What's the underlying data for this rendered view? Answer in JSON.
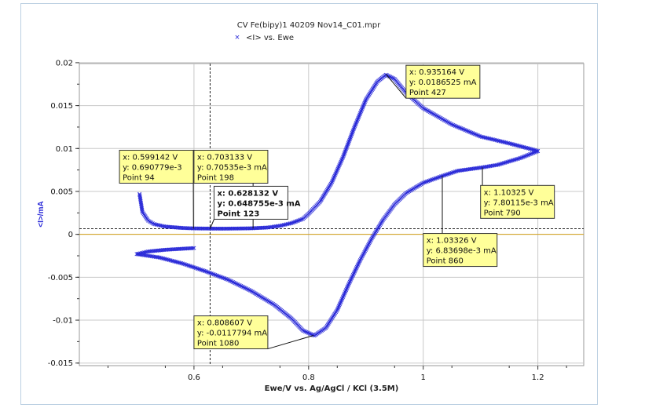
{
  "chart_data": {
    "type": "scatter",
    "title": "CV Fe(bipy)1 40209 Nov14_C01.mpr",
    "legend": {
      "marker": "×",
      "label": "<I> vs. Ewe",
      "position": "top-left"
    },
    "xlabel": "Ewe/V vs. Ag/AgCl / KCl (3.5M)",
    "ylabel": "<I>/mA",
    "xlim": [
      0.4,
      1.28
    ],
    "ylim": [
      -0.0153,
      0.0199
    ],
    "xticks": [
      "0.6",
      "0.8",
      "1",
      "1.2"
    ],
    "yticks": [
      {
        "v": 0.02,
        "label": "0.02"
      },
      {
        "v": 0.015,
        "label": "0.015"
      },
      {
        "v": 0.01,
        "label": "0.01"
      },
      {
        "v": 0.005,
        "label": "0.005"
      },
      {
        "v": 0,
        "label": "0"
      },
      {
        "v": -0.005,
        "label": "-0.005"
      },
      {
        "v": -0.01,
        "label": "-0.01"
      },
      {
        "v": -0.015,
        "label": "-0.015"
      }
    ],
    "grid": true,
    "cursor": {
      "x": 0.628132,
      "y": 0.000648755
    },
    "zero_line": true,
    "series": [
      {
        "name": "<I> vs. Ewe",
        "color": "#2a2ad8",
        "anodic_sweep": [
          [
            0.505,
            0.0047
          ],
          [
            0.51,
            0.0026
          ],
          [
            0.52,
            0.0016
          ],
          [
            0.53,
            0.0012
          ],
          [
            0.55,
            0.0009
          ],
          [
            0.58,
            0.00074
          ],
          [
            0.6,
            0.00069
          ],
          [
            0.65,
            0.00066
          ],
          [
            0.7,
            0.0007
          ],
          [
            0.73,
            0.0008
          ],
          [
            0.75,
            0.001
          ],
          [
            0.77,
            0.0013
          ],
          [
            0.79,
            0.0018
          ],
          [
            0.8,
            0.0024
          ],
          [
            0.82,
            0.0038
          ],
          [
            0.84,
            0.006
          ],
          [
            0.86,
            0.009
          ],
          [
            0.88,
            0.0125
          ],
          [
            0.9,
            0.0157
          ],
          [
            0.92,
            0.0178
          ],
          [
            0.935,
            0.0186
          ],
          [
            0.95,
            0.0181
          ],
          [
            0.97,
            0.0165
          ],
          [
            1.0,
            0.0147
          ],
          [
            1.05,
            0.0128
          ],
          [
            1.1,
            0.0114
          ],
          [
            1.15,
            0.0106
          ],
          [
            1.19,
            0.0099
          ],
          [
            1.2,
            0.0097
          ]
        ],
        "cathodic_sweep": [
          [
            1.2,
            0.0097
          ],
          [
            1.17,
            0.0089
          ],
          [
            1.13,
            0.0081
          ],
          [
            1.10325,
            0.0078
          ],
          [
            1.06,
            0.0074
          ],
          [
            1.03326,
            0.0068
          ],
          [
            1.0,
            0.006
          ],
          [
            0.97,
            0.0048
          ],
          [
            0.95,
            0.0035
          ],
          [
            0.93,
            0.0017
          ],
          [
            0.91,
            -0.0005
          ],
          [
            0.89,
            -0.003
          ],
          [
            0.87,
            -0.0058
          ],
          [
            0.85,
            -0.0088
          ],
          [
            0.83,
            -0.0109
          ],
          [
            0.81,
            -0.0118
          ],
          [
            0.79,
            -0.0112
          ],
          [
            0.77,
            -0.0098
          ],
          [
            0.74,
            -0.0082
          ],
          [
            0.7,
            -0.0066
          ],
          [
            0.66,
            -0.0053
          ],
          [
            0.62,
            -0.0043
          ],
          [
            0.58,
            -0.0034
          ],
          [
            0.54,
            -0.0027
          ],
          [
            0.5,
            -0.0023
          ],
          [
            0.52,
            -0.002
          ],
          [
            0.55,
            -0.0018
          ],
          [
            0.6,
            -0.0016
          ]
        ]
      }
    ],
    "annotations": [
      {
        "lines": [
          "x: 0.935164 V",
          "y: 0.0186525 mA",
          "Point 427"
        ],
        "point": [
          0.935164,
          0.0186525
        ],
        "box_at": [
          0.97,
          0.0197
        ],
        "bold": false
      },
      {
        "lines": [
          "x: 0.599142 V",
          "y: 0.690779e-3",
          "Point 94"
        ],
        "point": [
          0.599142,
          0.00069
        ],
        "box_at": [
          0.47,
          0.0098
        ],
        "bold": false
      },
      {
        "lines": [
          "x: 0.703133 V",
          "y: 0.70535e-3 mA",
          "Point 198"
        ],
        "point": [
          0.703133,
          0.000705
        ],
        "box_at": [
          0.6,
          0.0098
        ],
        "bold": false
      },
      {
        "lines": [
          "x: 0.628132 V",
          "y: 0.648755e-3 mA",
          "Point 123"
        ],
        "point": [
          0.628132,
          0.000649
        ],
        "box_at": [
          0.635,
          0.0056
        ],
        "bold": true
      },
      {
        "lines": [
          "x: 1.10325 V",
          "y: 7.80115e-3 mA",
          "Point 790"
        ],
        "point": [
          1.10325,
          0.0078
        ],
        "box_at": [
          1.1,
          0.0057
        ],
        "bold": false
      },
      {
        "lines": [
          "x: 1.03326 V",
          "y: 6.83698e-3 mA",
          "Point 860"
        ],
        "point": [
          1.03326,
          0.0068
        ],
        "box_at": [
          1.0,
          0.0001
        ],
        "bold": false
      },
      {
        "lines": [
          "x: 0.808607 V",
          "y: -0.0117794 mA",
          "Point 1080"
        ],
        "point": [
          0.808607,
          -0.01178
        ],
        "box_at": [
          0.6,
          -0.0095
        ],
        "bold": false
      }
    ]
  }
}
